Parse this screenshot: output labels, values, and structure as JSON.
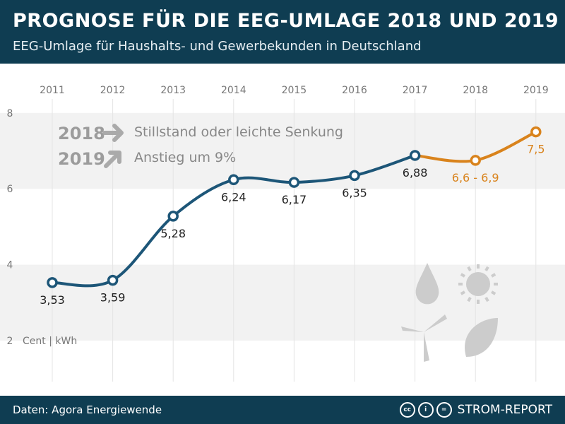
{
  "header": {
    "title": "PROGNOSE FÜR DIE EEG-UMLAGE 2018 UND 2019",
    "subtitle": "EEG-Umlage für Haushalts- und Gewerbekunden in Deutschland"
  },
  "footer": {
    "source": "Daten: Agora Energiewende",
    "brand": "STROM-REPORT",
    "license_icons": [
      "cc-icon",
      "by-icon",
      "nd-icon"
    ]
  },
  "legend": {
    "rows": [
      {
        "year": "2018",
        "icon": "arrow-right-icon",
        "text": "Stillstand oder leichte Senkung"
      },
      {
        "year": "2019",
        "icon": "arrow-up-right-icon",
        "text": "Anstieg um 9%"
      }
    ]
  },
  "decor_icons": [
    "water-drop-icon",
    "sun-icon",
    "wind-turbine-icon",
    "leaf-icon"
  ],
  "colors": {
    "actual": "#1d5678",
    "forecast": "#d9831c",
    "header": "#0f3d52"
  },
  "chart_data": {
    "type": "line",
    "title": "PROGNOSE FÜR DIE EEG-UMLAGE 2018 UND 2019",
    "subtitle": "EEG-Umlage für Haushalts- und Gewerbekunden in Deutschland",
    "ylabel": "Cent | kWh",
    "categories": [
      "2011",
      "2012",
      "2013",
      "2014",
      "2015",
      "2016",
      "2017",
      "2018",
      "2019"
    ],
    "y_ticks": [
      "2",
      "4",
      "6",
      "8"
    ],
    "ylim": [
      2,
      8
    ],
    "grid": "horizontal bands and vertical lines",
    "series": [
      {
        "kind": "actual",
        "x": [
          "2011",
          "2012",
          "2013",
          "2014",
          "2015",
          "2016",
          "2017"
        ],
        "values": [
          3.53,
          3.59,
          5.28,
          6.24,
          6.17,
          6.35,
          6.88
        ],
        "labels": [
          "3,53",
          "3,59",
          "5,28",
          "6,24",
          "6,17",
          "6,35",
          "6,88"
        ]
      },
      {
        "kind": "forecast",
        "x": [
          "2017",
          "2018",
          "2019"
        ],
        "values": [
          6.88,
          6.75,
          7.5
        ],
        "labels": [
          "",
          "6,6 - 6,9",
          "7,5"
        ]
      }
    ]
  }
}
